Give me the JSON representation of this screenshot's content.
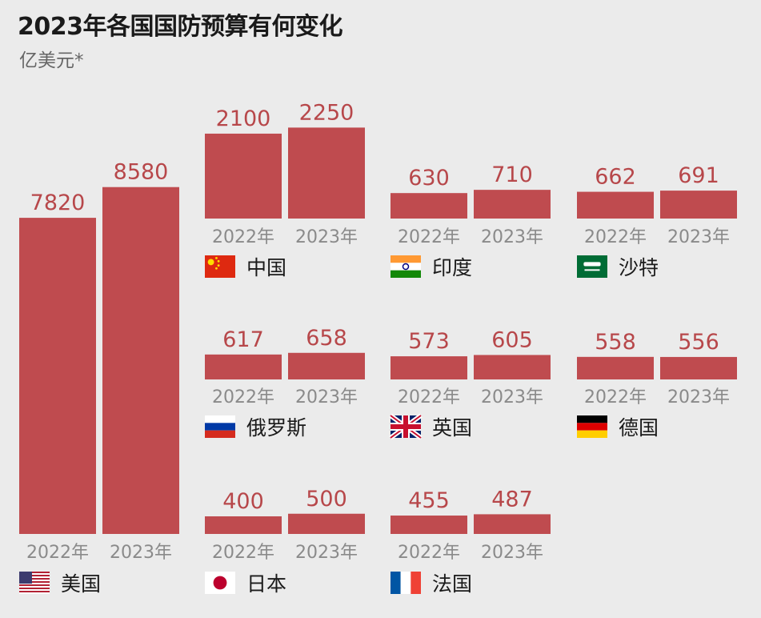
{
  "title": "2023年各国国防预算有何变化",
  "unit": "亿美元*",
  "colors": {
    "bar": "#bf4b4f",
    "value_text": "#b7474a",
    "year_text": "#8a8a8a",
    "background": "#ebebeb"
  },
  "chart_data": {
    "type": "bar",
    "title": "2023年各国国防预算有何变化",
    "ylabel": "亿美元*",
    "categories": [
      "2022年",
      "2023年"
    ],
    "series": [
      {
        "name": "美国",
        "flag": "us-flag-icon",
        "values": [
          7820,
          8580
        ]
      },
      {
        "name": "中国",
        "flag": "china-flag-icon",
        "values": [
          2100,
          2250
        ]
      },
      {
        "name": "印度",
        "flag": "india-flag-icon",
        "values": [
          630,
          710
        ]
      },
      {
        "name": "沙特",
        "flag": "saudi-flag-icon",
        "values": [
          662,
          691
        ]
      },
      {
        "name": "俄罗斯",
        "flag": "russia-flag-icon",
        "values": [
          617,
          658
        ]
      },
      {
        "name": "英国",
        "flag": "uk-flag-icon",
        "values": [
          573,
          605
        ]
      },
      {
        "name": "德国",
        "flag": "germany-flag-icon",
        "values": [
          558,
          556
        ]
      },
      {
        "name": "日本",
        "flag": "japan-flag-icon",
        "values": [
          400,
          500
        ]
      },
      {
        "name": "法国",
        "flag": "france-flag-icon",
        "values": [
          455,
          487
        ]
      }
    ]
  }
}
